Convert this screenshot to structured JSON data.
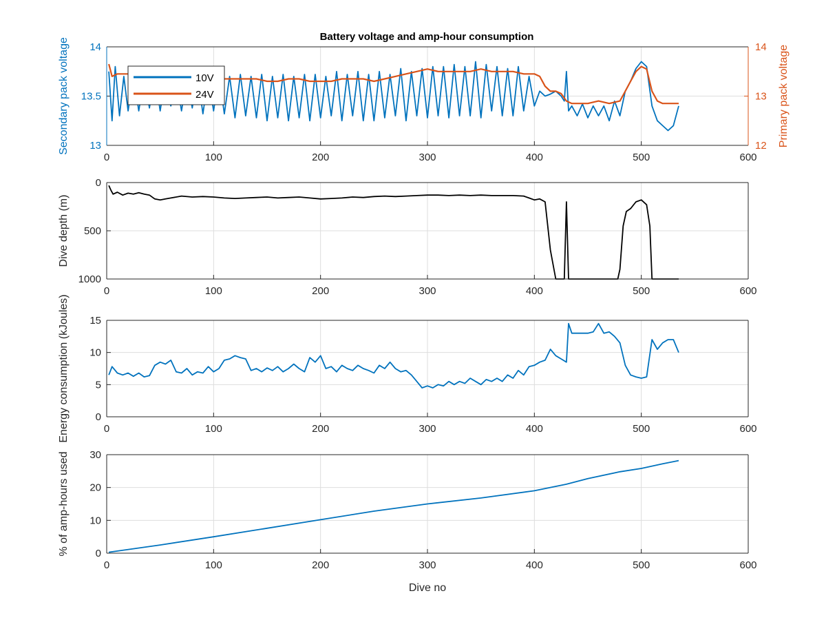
{
  "title": "Battery voltage and amp-hour consumption",
  "colors": {
    "blue": "#0072BD",
    "orange": "#D95319",
    "black": "#000000",
    "grid": "#dddddd"
  },
  "chart_data": [
    {
      "id": "voltage",
      "type": "line",
      "title": "Battery voltage and amp-hour consumption",
      "xlabel": "",
      "ylabel": "Secondary pack voltage",
      "ylabel_right": "Primary pack voltage",
      "xlim": [
        0,
        600
      ],
      "ylim": [
        13,
        14
      ],
      "ylim_right": [
        12,
        14
      ],
      "xticks": [
        "0",
        "100",
        "200",
        "300",
        "400",
        "500",
        "600"
      ],
      "yticks": [
        "13",
        "13.5",
        "14"
      ],
      "yticks_right": [
        "12",
        "13",
        "14"
      ],
      "grid": true,
      "legend": "top-left",
      "series": [
        {
          "name": "10V",
          "axis": "left",
          "color": "#0072BD",
          "x": [
            2,
            5,
            8,
            12,
            16,
            20,
            25,
            30,
            35,
            40,
            45,
            50,
            55,
            60,
            65,
            70,
            75,
            80,
            85,
            90,
            95,
            100,
            105,
            110,
            115,
            120,
            125,
            130,
            135,
            140,
            145,
            150,
            155,
            160,
            165,
            170,
            175,
            180,
            185,
            190,
            195,
            200,
            205,
            210,
            215,
            220,
            225,
            230,
            235,
            240,
            245,
            250,
            255,
            260,
            265,
            270,
            275,
            280,
            285,
            290,
            295,
            300,
            305,
            310,
            315,
            320,
            325,
            330,
            335,
            340,
            345,
            350,
            355,
            360,
            365,
            370,
            375,
            380,
            385,
            390,
            395,
            400,
            405,
            410,
            415,
            420,
            425,
            428,
            430,
            432,
            435,
            440,
            445,
            450,
            455,
            460,
            465,
            470,
            475,
            480,
            485,
            490,
            495,
            500,
            505,
            510,
            515,
            520,
            525,
            530,
            535
          ],
          "values": [
            13.75,
            13.25,
            13.8,
            13.3,
            13.7,
            13.35,
            13.72,
            13.35,
            13.7,
            13.38,
            13.72,
            13.35,
            13.7,
            13.4,
            13.68,
            13.35,
            13.7,
            13.38,
            13.72,
            13.32,
            13.7,
            13.35,
            13.72,
            13.32,
            13.7,
            13.28,
            13.72,
            13.3,
            13.7,
            13.28,
            13.72,
            13.25,
            13.7,
            13.28,
            13.72,
            13.25,
            13.7,
            13.28,
            13.72,
            13.25,
            13.72,
            13.28,
            13.7,
            13.3,
            13.75,
            13.25,
            13.72,
            13.3,
            13.75,
            13.25,
            13.72,
            13.25,
            13.75,
            13.28,
            13.72,
            13.3,
            13.78,
            13.25,
            13.75,
            13.3,
            13.78,
            13.28,
            13.8,
            13.3,
            13.8,
            13.28,
            13.82,
            13.3,
            13.8,
            13.3,
            13.85,
            13.28,
            13.82,
            13.35,
            13.8,
            13.3,
            13.78,
            13.3,
            13.8,
            13.35,
            13.7,
            13.4,
            13.55,
            13.5,
            13.52,
            13.55,
            13.5,
            13.45,
            13.75,
            13.35,
            13.4,
            13.3,
            13.42,
            13.28,
            13.4,
            13.3,
            13.4,
            13.25,
            13.45,
            13.3,
            13.55,
            13.65,
            13.78,
            13.85,
            13.8,
            13.4,
            13.25,
            13.2,
            13.15,
            13.2,
            13.4
          ]
        },
        {
          "name": "24V",
          "axis": "right",
          "color": "#D95319",
          "x": [
            2,
            5,
            10,
            20,
            30,
            40,
            50,
            60,
            70,
            80,
            90,
            100,
            110,
            120,
            130,
            140,
            150,
            160,
            170,
            180,
            190,
            200,
            210,
            220,
            230,
            240,
            250,
            260,
            270,
            280,
            290,
            300,
            310,
            320,
            330,
            340,
            350,
            360,
            370,
            380,
            390,
            400,
            405,
            410,
            415,
            420,
            425,
            430,
            435,
            440,
            450,
            460,
            470,
            480,
            485,
            490,
            495,
            500,
            505,
            510,
            515,
            520,
            525,
            530,
            535
          ],
          "values": [
            13.65,
            13.4,
            13.45,
            13.45,
            13.45,
            13.4,
            13.4,
            13.45,
            13.4,
            13.4,
            13.35,
            13.4,
            13.35,
            13.35,
            13.35,
            13.35,
            13.3,
            13.3,
            13.35,
            13.35,
            13.3,
            13.3,
            13.3,
            13.35,
            13.35,
            13.35,
            13.3,
            13.35,
            13.4,
            13.45,
            13.5,
            13.55,
            13.5,
            13.5,
            13.5,
            13.5,
            13.55,
            13.5,
            13.5,
            13.5,
            13.45,
            13.45,
            13.4,
            13.2,
            13.1,
            13.1,
            13.05,
            12.9,
            12.85,
            12.85,
            12.85,
            12.9,
            12.85,
            12.9,
            13.1,
            13.3,
            13.5,
            13.6,
            13.55,
            13.1,
            12.9,
            12.85,
            12.85,
            12.85,
            12.85
          ]
        }
      ]
    },
    {
      "id": "depth",
      "type": "line",
      "xlabel": "",
      "ylabel": "Dive depth (m)",
      "xlim": [
        0,
        600
      ],
      "ylim": [
        0,
        1000
      ],
      "yreverse": true,
      "xticks": [
        "0",
        "100",
        "200",
        "300",
        "400",
        "500",
        "600"
      ],
      "yticks": [
        "0",
        "500",
        "1000"
      ],
      "grid": true,
      "series": [
        {
          "color": "#000000",
          "x": [
            2,
            4,
            6,
            10,
            15,
            20,
            25,
            30,
            35,
            40,
            45,
            50,
            55,
            60,
            70,
            80,
            90,
            100,
            110,
            120,
            130,
            140,
            150,
            160,
            170,
            180,
            190,
            200,
            210,
            220,
            230,
            240,
            250,
            260,
            270,
            280,
            290,
            300,
            310,
            320,
            330,
            340,
            350,
            360,
            370,
            380,
            390,
            395,
            400,
            405,
            410,
            415,
            420,
            425,
            428,
            430,
            432,
            434,
            436,
            440,
            450,
            460,
            470,
            478,
            480,
            483,
            486,
            490,
            495,
            500,
            505,
            508,
            510,
            515,
            520,
            525,
            530,
            535
          ],
          "values": [
            30,
            80,
            120,
            100,
            130,
            110,
            120,
            105,
            120,
            130,
            170,
            180,
            170,
            160,
            140,
            150,
            145,
            150,
            160,
            165,
            160,
            155,
            150,
            160,
            155,
            150,
            160,
            170,
            165,
            160,
            150,
            155,
            145,
            140,
            145,
            140,
            135,
            130,
            130,
            135,
            130,
            135,
            130,
            135,
            135,
            135,
            140,
            160,
            180,
            170,
            200,
            700,
            1000,
            1000,
            1000,
            200,
            1000,
            1000,
            1000,
            1000,
            1000,
            1000,
            1000,
            1000,
            900,
            450,
            300,
            270,
            200,
            180,
            230,
            450,
            1000,
            1000,
            1000,
            1000,
            1000,
            1000
          ]
        }
      ]
    },
    {
      "id": "energy",
      "type": "line",
      "xlabel": "",
      "ylabel": "Energy consumption (kJoules)",
      "xlim": [
        0,
        600
      ],
      "ylim": [
        0,
        15
      ],
      "xticks": [
        "0",
        "100",
        "200",
        "300",
        "400",
        "500",
        "600"
      ],
      "yticks": [
        "0",
        "5",
        "10",
        "15"
      ],
      "grid": true,
      "series": [
        {
          "color": "#0072BD",
          "x": [
            2,
            5,
            10,
            15,
            20,
            25,
            30,
            35,
            40,
            45,
            50,
            55,
            60,
            65,
            70,
            75,
            80,
            85,
            90,
            95,
            100,
            105,
            110,
            115,
            120,
            125,
            130,
            135,
            140,
            145,
            150,
            155,
            160,
            165,
            170,
            175,
            180,
            185,
            190,
            195,
            200,
            205,
            210,
            215,
            220,
            225,
            230,
            235,
            240,
            245,
            250,
            255,
            260,
            265,
            270,
            275,
            280,
            285,
            290,
            295,
            300,
            305,
            310,
            315,
            320,
            325,
            330,
            335,
            340,
            345,
            350,
            355,
            360,
            365,
            370,
            375,
            380,
            385,
            390,
            395,
            400,
            405,
            410,
            415,
            420,
            425,
            430,
            432,
            435,
            440,
            445,
            450,
            455,
            460,
            465,
            470,
            475,
            480,
            485,
            490,
            495,
            500,
            505,
            510,
            515,
            520,
            525,
            530,
            535
          ],
          "values": [
            6.5,
            7.8,
            6.8,
            6.5,
            6.8,
            6.3,
            6.8,
            6.2,
            6.4,
            8.0,
            8.5,
            8.2,
            8.8,
            7.0,
            6.8,
            7.5,
            6.5,
            7.0,
            6.8,
            7.8,
            7.0,
            7.5,
            8.8,
            9.0,
            9.5,
            9.2,
            9.0,
            7.2,
            7.5,
            7.0,
            7.6,
            7.2,
            7.8,
            7.0,
            7.5,
            8.2,
            7.5,
            7.0,
            9.2,
            8.5,
            9.5,
            7.5,
            7.8,
            7.0,
            8.0,
            7.5,
            7.2,
            8.0,
            7.5,
            7.2,
            6.8,
            8.0,
            7.5,
            8.5,
            7.5,
            7.0,
            7.2,
            6.5,
            5.5,
            4.5,
            4.8,
            4.5,
            5.0,
            4.8,
            5.5,
            5.0,
            5.5,
            5.2,
            6.0,
            5.5,
            5.0,
            5.8,
            5.5,
            6.0,
            5.5,
            6.5,
            6.0,
            7.2,
            6.5,
            7.8,
            8.0,
            8.5,
            8.8,
            10.5,
            9.5,
            9.0,
            8.5,
            14.5,
            13.0,
            13.0,
            13.0,
            13.0,
            13.2,
            14.5,
            13.0,
            13.2,
            12.5,
            11.5,
            8.0,
            6.5,
            6.2,
            6.0,
            6.2,
            12.0,
            10.5,
            11.5,
            12.0,
            12.0,
            10.0
          ]
        }
      ]
    },
    {
      "id": "amphours",
      "type": "line",
      "xlabel": "Dive no",
      "ylabel": "% of amp-hours used",
      "xlim": [
        0,
        600
      ],
      "ylim": [
        0,
        30
      ],
      "xticks": [
        "0",
        "100",
        "200",
        "300",
        "400",
        "500",
        "600"
      ],
      "yticks": [
        "0",
        "10",
        "20",
        "30"
      ],
      "grid": true,
      "series": [
        {
          "color": "#0072BD",
          "x": [
            2,
            50,
            100,
            150,
            200,
            250,
            300,
            350,
            400,
            430,
            450,
            480,
            500,
            520,
            535
          ],
          "values": [
            0.3,
            2.5,
            5.0,
            7.6,
            10.2,
            12.8,
            15.0,
            16.8,
            19.0,
            21.0,
            22.7,
            24.8,
            25.8,
            27.2,
            28.2
          ]
        }
      ]
    }
  ]
}
